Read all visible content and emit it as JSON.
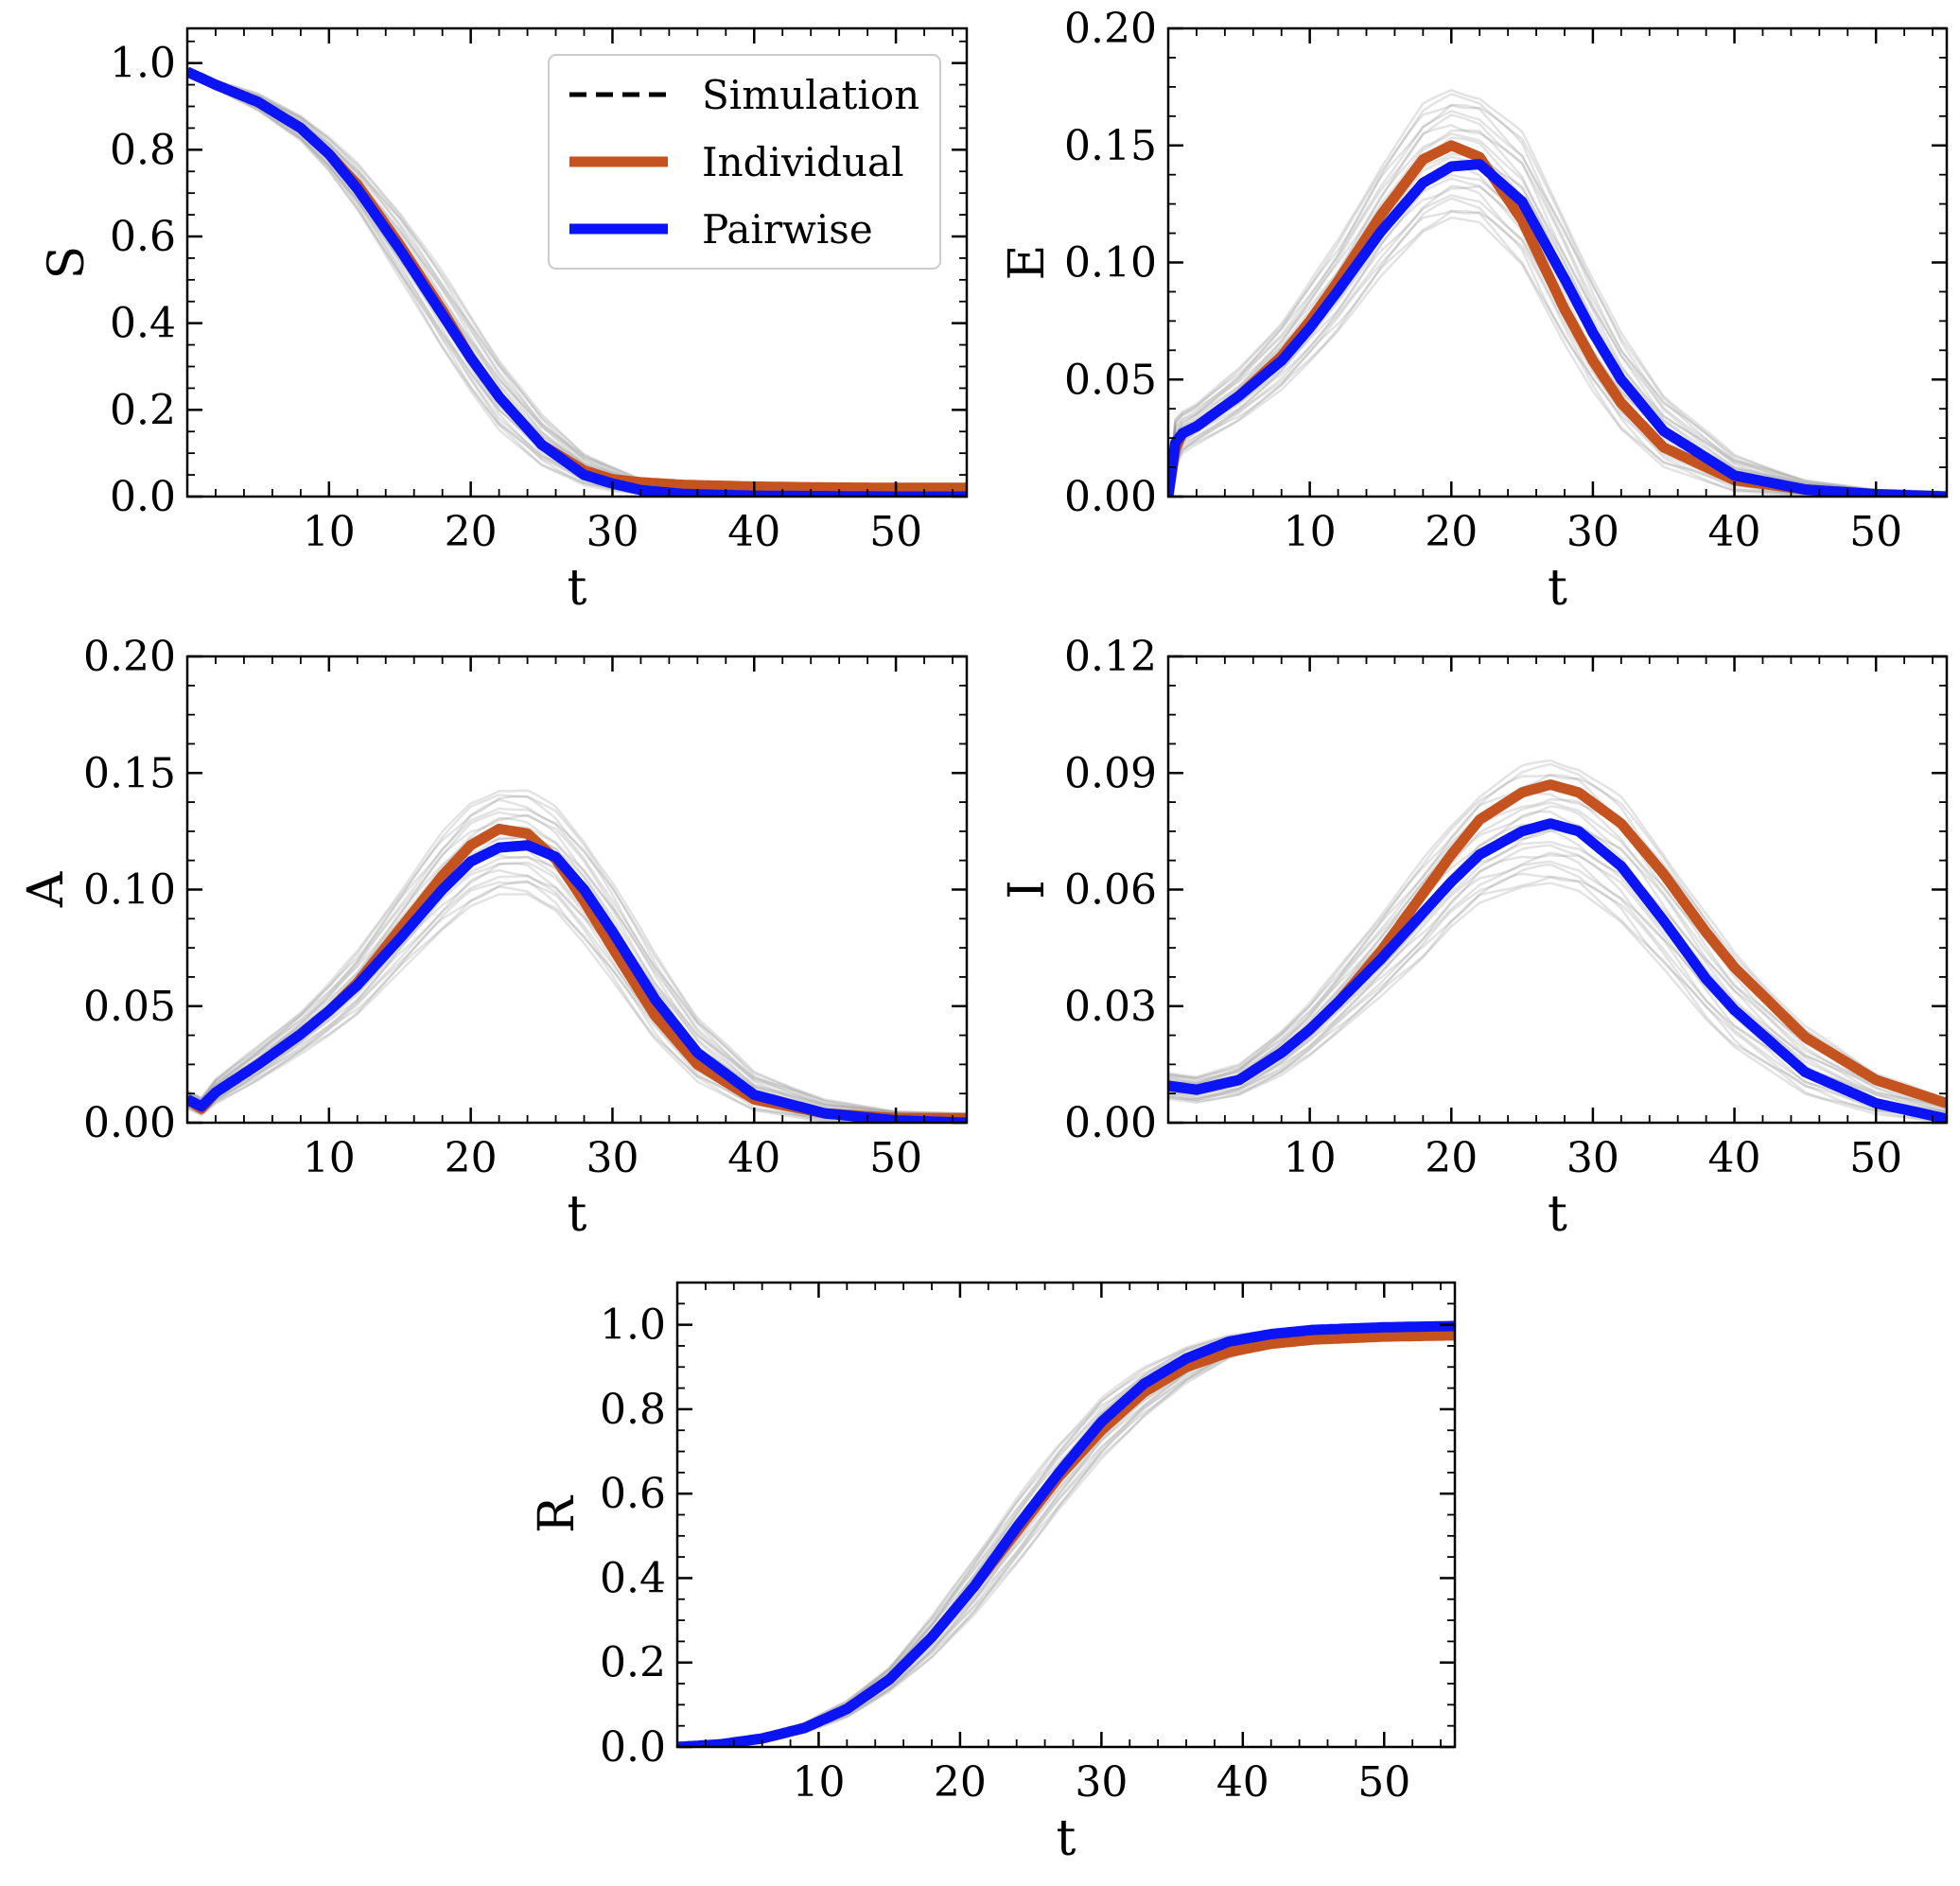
{
  "legend": {
    "entries": [
      {
        "label": "Simulation",
        "color": "#000000",
        "style": "dashed"
      },
      {
        "label": "Individual",
        "color": "#c4531f",
        "style": "solid"
      },
      {
        "label": "Pairwise",
        "color": "#0a14f5",
        "style": "solid"
      }
    ],
    "placement": "upper-right of first panel"
  },
  "colors": {
    "individual": "#c4531f",
    "pairwise": "#0a14f5",
    "simulation_band": "#808080"
  },
  "chart_data": [
    {
      "type": "line",
      "xlabel": "t",
      "ylabel": "S",
      "xlim": [
        0,
        55
      ],
      "ylim": [
        0,
        1.08
      ],
      "xticks": [
        10,
        20,
        30,
        40,
        50
      ],
      "xtick_labels": [
        "10",
        "20",
        "30",
        "40",
        "50"
      ],
      "yticks": [
        0,
        0.2,
        0.4,
        0.6,
        0.8,
        1.0
      ],
      "ytick_labels": [
        "0.0",
        "0.2",
        "0.4",
        "0.6",
        "0.8",
        "1.0"
      ],
      "show_legend": true,
      "x": [
        0,
        2,
        5,
        8,
        10,
        12,
        15,
        18,
        20,
        22,
        25,
        28,
        30,
        32,
        35,
        40,
        45,
        50,
        55
      ],
      "series": [
        {
          "name": "Individual",
          "values": [
            0.98,
            0.95,
            0.91,
            0.85,
            0.79,
            0.72,
            0.58,
            0.43,
            0.32,
            0.23,
            0.12,
            0.06,
            0.04,
            0.033,
            0.027,
            0.023,
            0.021,
            0.02,
            0.02
          ]
        },
        {
          "name": "Pairwise",
          "values": [
            0.98,
            0.95,
            0.91,
            0.85,
            0.79,
            0.71,
            0.57,
            0.42,
            0.32,
            0.23,
            0.12,
            0.05,
            0.03,
            0.015,
            0.006,
            0.002,
            0.001,
            0.0,
            0.0
          ]
        }
      ],
      "simulation_band": {
        "lower": [
          0.97,
          0.94,
          0.89,
          0.82,
          0.75,
          0.66,
          0.5,
          0.34,
          0.24,
          0.15,
          0.07,
          0.025,
          0.012,
          0.006,
          0.002,
          0.0,
          0.0,
          0.0,
          0.0
        ],
        "upper": [
          0.99,
          0.96,
          0.93,
          0.88,
          0.83,
          0.77,
          0.66,
          0.52,
          0.42,
          0.32,
          0.19,
          0.1,
          0.07,
          0.04,
          0.02,
          0.008,
          0.004,
          0.002,
          0.001
        ]
      }
    },
    {
      "type": "line",
      "xlabel": "t",
      "ylabel": "E",
      "xlim": [
        0,
        55
      ],
      "ylim": [
        0,
        0.2
      ],
      "xticks": [
        10,
        20,
        30,
        40,
        50
      ],
      "xtick_labels": [
        "10",
        "20",
        "30",
        "40",
        "50"
      ],
      "yticks": [
        0,
        0.05,
        0.1,
        0.15,
        0.2
      ],
      "ytick_labels": [
        "0.00",
        "0.05",
        "0.10",
        "0.15",
        "0.20"
      ],
      "show_legend": false,
      "x": [
        0,
        0.5,
        1,
        2,
        5,
        8,
        10,
        12,
        15,
        18,
        20,
        22,
        25,
        28,
        30,
        32,
        35,
        40,
        45,
        50,
        55
      ],
      "series": [
        {
          "name": "Individual",
          "values": [
            0.0,
            0.02,
            0.027,
            0.03,
            0.043,
            0.06,
            0.075,
            0.092,
            0.12,
            0.144,
            0.15,
            0.145,
            0.118,
            0.08,
            0.058,
            0.04,
            0.021,
            0.007,
            0.003,
            0.001,
            0.0
          ]
        },
        {
          "name": "Pairwise",
          "values": [
            0.0,
            0.023,
            0.027,
            0.03,
            0.043,
            0.058,
            0.072,
            0.088,
            0.113,
            0.134,
            0.141,
            0.142,
            0.126,
            0.093,
            0.07,
            0.05,
            0.028,
            0.009,
            0.003,
            0.001,
            0.0
          ]
        }
      ],
      "simulation_band": {
        "lower": [
          0.0,
          0.012,
          0.018,
          0.022,
          0.032,
          0.045,
          0.057,
          0.07,
          0.093,
          0.112,
          0.118,
          0.116,
          0.098,
          0.064,
          0.044,
          0.028,
          0.012,
          0.002,
          0.0,
          0.0,
          0.0
        ],
        "upper": [
          0.0,
          0.034,
          0.037,
          0.04,
          0.055,
          0.075,
          0.092,
          0.11,
          0.142,
          0.168,
          0.175,
          0.172,
          0.156,
          0.12,
          0.094,
          0.07,
          0.044,
          0.018,
          0.007,
          0.003,
          0.002
        ]
      }
    },
    {
      "type": "line",
      "xlabel": "t",
      "ylabel": "A",
      "xlim": [
        0,
        55
      ],
      "ylim": [
        0,
        0.2
      ],
      "xticks": [
        10,
        20,
        30,
        40,
        50
      ],
      "xtick_labels": [
        "10",
        "20",
        "30",
        "40",
        "50"
      ],
      "yticks": [
        0,
        0.05,
        0.1,
        0.15,
        0.2
      ],
      "ytick_labels": [
        "0.00",
        "0.05",
        "0.10",
        "0.15",
        "0.20"
      ],
      "show_legend": false,
      "x": [
        0,
        1,
        2,
        5,
        8,
        10,
        12,
        15,
        18,
        20,
        22,
        24,
        26,
        28,
        30,
        33,
        36,
        40,
        45,
        50,
        55
      ],
      "series": [
        {
          "name": "Individual",
          "values": [
            0.01,
            0.006,
            0.013,
            0.025,
            0.038,
            0.048,
            0.06,
            0.083,
            0.106,
            0.119,
            0.126,
            0.124,
            0.113,
            0.095,
            0.075,
            0.046,
            0.025,
            0.01,
            0.004,
            0.002,
            0.002
          ]
        },
        {
          "name": "Pairwise",
          "values": [
            0.01,
            0.007,
            0.013,
            0.025,
            0.038,
            0.048,
            0.059,
            0.079,
            0.1,
            0.112,
            0.118,
            0.119,
            0.114,
            0.1,
            0.082,
            0.053,
            0.03,
            0.012,
            0.004,
            0.001,
            0.0
          ]
        }
      ],
      "simulation_band": {
        "lower": [
          0.006,
          0.003,
          0.008,
          0.018,
          0.029,
          0.037,
          0.046,
          0.064,
          0.082,
          0.092,
          0.097,
          0.097,
          0.09,
          0.076,
          0.06,
          0.035,
          0.017,
          0.005,
          0.0,
          0.0,
          0.0
        ],
        "upper": [
          0.014,
          0.011,
          0.019,
          0.033,
          0.048,
          0.06,
          0.074,
          0.1,
          0.125,
          0.138,
          0.144,
          0.143,
          0.136,
          0.122,
          0.104,
          0.073,
          0.046,
          0.022,
          0.01,
          0.005,
          0.004
        ]
      }
    },
    {
      "type": "line",
      "xlabel": "t",
      "ylabel": "I",
      "xlim": [
        0,
        55
      ],
      "ylim": [
        0,
        0.12
      ],
      "xticks": [
        10,
        20,
        30,
        40,
        50
      ],
      "xtick_labels": [
        "10",
        "20",
        "30",
        "40",
        "50"
      ],
      "yticks": [
        0,
        0.03,
        0.06,
        0.09,
        0.12
      ],
      "ytick_labels": [
        "0.00",
        "0.03",
        "0.06",
        "0.09",
        "0.12"
      ],
      "show_legend": false,
      "x": [
        0,
        2,
        5,
        8,
        10,
        12,
        15,
        18,
        20,
        22,
        25,
        27,
        29,
        32,
        35,
        38,
        40,
        45,
        50,
        55
      ],
      "series": [
        {
          "name": "Individual",
          "values": [
            0.0095,
            0.0085,
            0.011,
            0.018,
            0.024,
            0.031,
            0.044,
            0.059,
            0.069,
            0.078,
            0.085,
            0.087,
            0.085,
            0.077,
            0.064,
            0.049,
            0.04,
            0.022,
            0.011,
            0.005
          ]
        },
        {
          "name": "Pairwise",
          "values": [
            0.0095,
            0.0085,
            0.011,
            0.018,
            0.024,
            0.031,
            0.042,
            0.054,
            0.062,
            0.069,
            0.075,
            0.077,
            0.075,
            0.066,
            0.052,
            0.037,
            0.029,
            0.013,
            0.005,
            0.001
          ]
        }
      ],
      "simulation_band": {
        "lower": [
          0.006,
          0.005,
          0.007,
          0.012,
          0.017,
          0.023,
          0.032,
          0.042,
          0.05,
          0.056,
          0.06,
          0.061,
          0.059,
          0.051,
          0.039,
          0.026,
          0.019,
          0.007,
          0.002,
          0.0
        ],
        "upper": [
          0.013,
          0.012,
          0.015,
          0.024,
          0.031,
          0.04,
          0.054,
          0.068,
          0.077,
          0.085,
          0.092,
          0.094,
          0.092,
          0.084,
          0.07,
          0.054,
          0.044,
          0.025,
          0.013,
          0.006
        ]
      }
    },
    {
      "type": "line",
      "xlabel": "t",
      "ylabel": "R",
      "xlim": [
        0,
        55
      ],
      "ylim": [
        0,
        1.1
      ],
      "xticks": [
        10,
        20,
        30,
        40,
        50
      ],
      "xtick_labels": [
        "10",
        "20",
        "30",
        "40",
        "50"
      ],
      "yticks": [
        0,
        0.2,
        0.4,
        0.6,
        0.8,
        1.0
      ],
      "ytick_labels": [
        "0.0",
        "0.2",
        "0.4",
        "0.6",
        "0.8",
        "1.0"
      ],
      "show_legend": false,
      "x": [
        0,
        3,
        6,
        9,
        12,
        15,
        18,
        21,
        24,
        27,
        30,
        33,
        36,
        39,
        42,
        45,
        50,
        55
      ],
      "series": [
        {
          "name": "Individual",
          "values": [
            0.0,
            0.006,
            0.02,
            0.045,
            0.09,
            0.16,
            0.26,
            0.38,
            0.51,
            0.64,
            0.75,
            0.84,
            0.9,
            0.935,
            0.955,
            0.965,
            0.972,
            0.975
          ]
        },
        {
          "name": "Pairwise",
          "values": [
            0.0,
            0.006,
            0.02,
            0.045,
            0.09,
            0.16,
            0.26,
            0.38,
            0.52,
            0.65,
            0.77,
            0.86,
            0.92,
            0.96,
            0.978,
            0.988,
            0.994,
            0.997
          ]
        }
      ],
      "simulation_band": {
        "lower": [
          0.0,
          0.003,
          0.013,
          0.033,
          0.07,
          0.13,
          0.21,
          0.31,
          0.43,
          0.56,
          0.68,
          0.78,
          0.86,
          0.92,
          0.955,
          0.975,
          0.988,
          0.993
        ],
        "upper": [
          0.0,
          0.01,
          0.028,
          0.058,
          0.11,
          0.19,
          0.31,
          0.45,
          0.59,
          0.72,
          0.83,
          0.9,
          0.95,
          0.975,
          0.988,
          0.994,
          0.997,
          0.999
        ]
      }
    }
  ]
}
